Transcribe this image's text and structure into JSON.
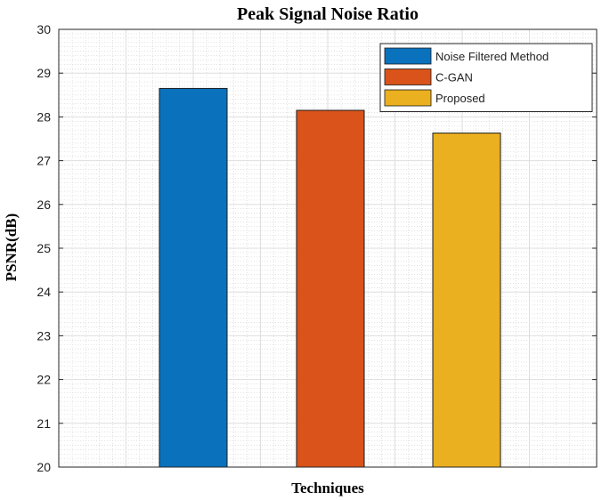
{
  "chart_data": {
    "type": "bar",
    "title": "Peak Signal Noise Ratio",
    "xlabel": "Techniques",
    "ylabel": "PSNR(dB)",
    "ylim": [
      20,
      30
    ],
    "yticks": [
      20,
      21,
      22,
      23,
      24,
      25,
      26,
      27,
      28,
      29,
      30
    ],
    "grid": true,
    "legend_position": "top-right",
    "series": [
      {
        "name": "Noise Filtered Method",
        "value": 28.65,
        "color": "#0a72bd"
      },
      {
        "name": "C-GAN",
        "value": 28.15,
        "color": "#d9531a"
      },
      {
        "name": "Proposed",
        "value": 27.63,
        "color": "#ebb020"
      }
    ]
  }
}
